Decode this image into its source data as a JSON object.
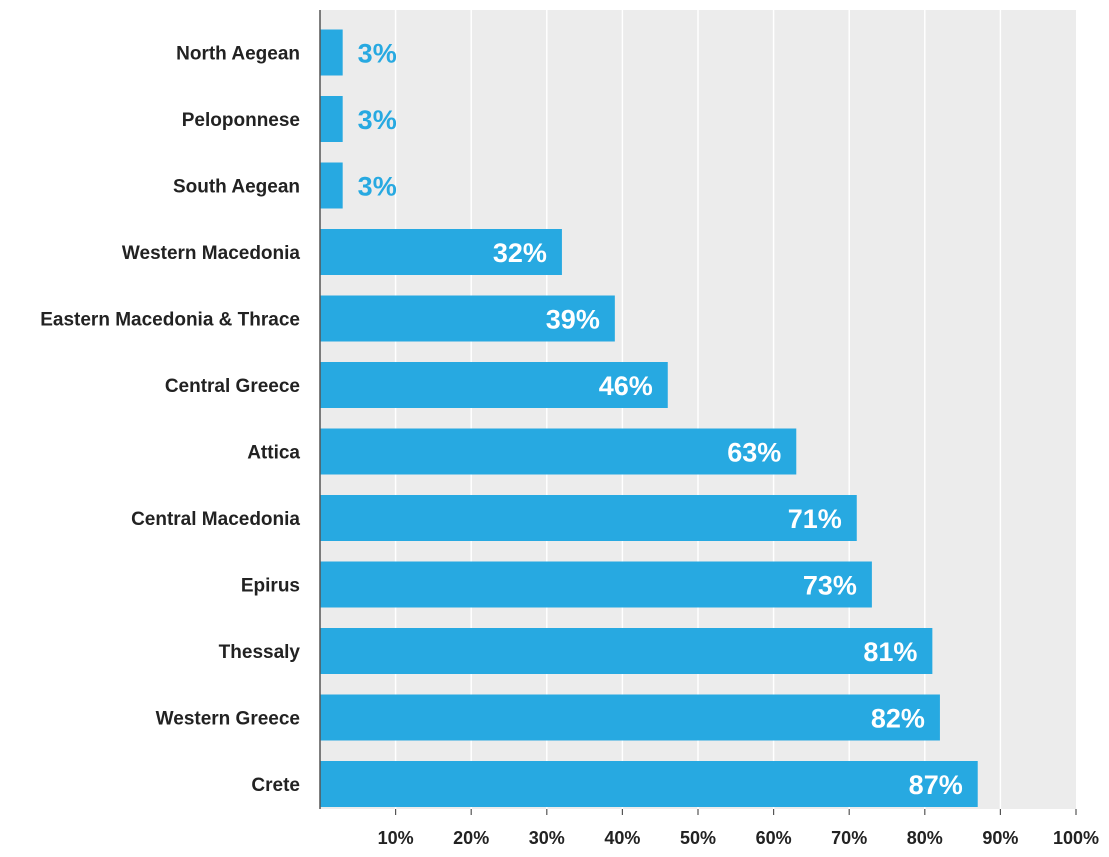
{
  "chart_data": {
    "type": "bar",
    "orientation": "horizontal",
    "categories": [
      "North Aegean",
      "Peloponnese",
      "South Aegean",
      "Western Macedonia",
      "Eastern Macedonia & Thrace",
      "Central Greece",
      "Attica",
      "Central Macedonia",
      "Epirus",
      "Thessaly",
      "Western Greece",
      "Crete"
    ],
    "values": [
      3,
      3,
      3,
      32,
      39,
      46,
      63,
      71,
      73,
      81,
      82,
      87
    ],
    "value_labels": [
      "3%",
      "3%",
      "3%",
      "32%",
      "39%",
      "46%",
      "63%",
      "71%",
      "73%",
      "81%",
      "82%",
      "87%"
    ],
    "xlim": [
      0,
      100
    ],
    "xticks": [
      10,
      20,
      30,
      40,
      50,
      60,
      70,
      80,
      90,
      100
    ],
    "xtick_labels": [
      "10%",
      "20%",
      "30%",
      "40%",
      "50%",
      "60%",
      "70%",
      "80%",
      "90%",
      "100%"
    ],
    "grid": true,
    "legend": "none",
    "colors": {
      "bar": "#27a9e1",
      "plot_background": "#ececec",
      "gridline": "#ffffff",
      "label_inside": "#ffffff",
      "label_outside": "#27a9e1",
      "axis": "#555555",
      "text": "#222222"
    }
  }
}
